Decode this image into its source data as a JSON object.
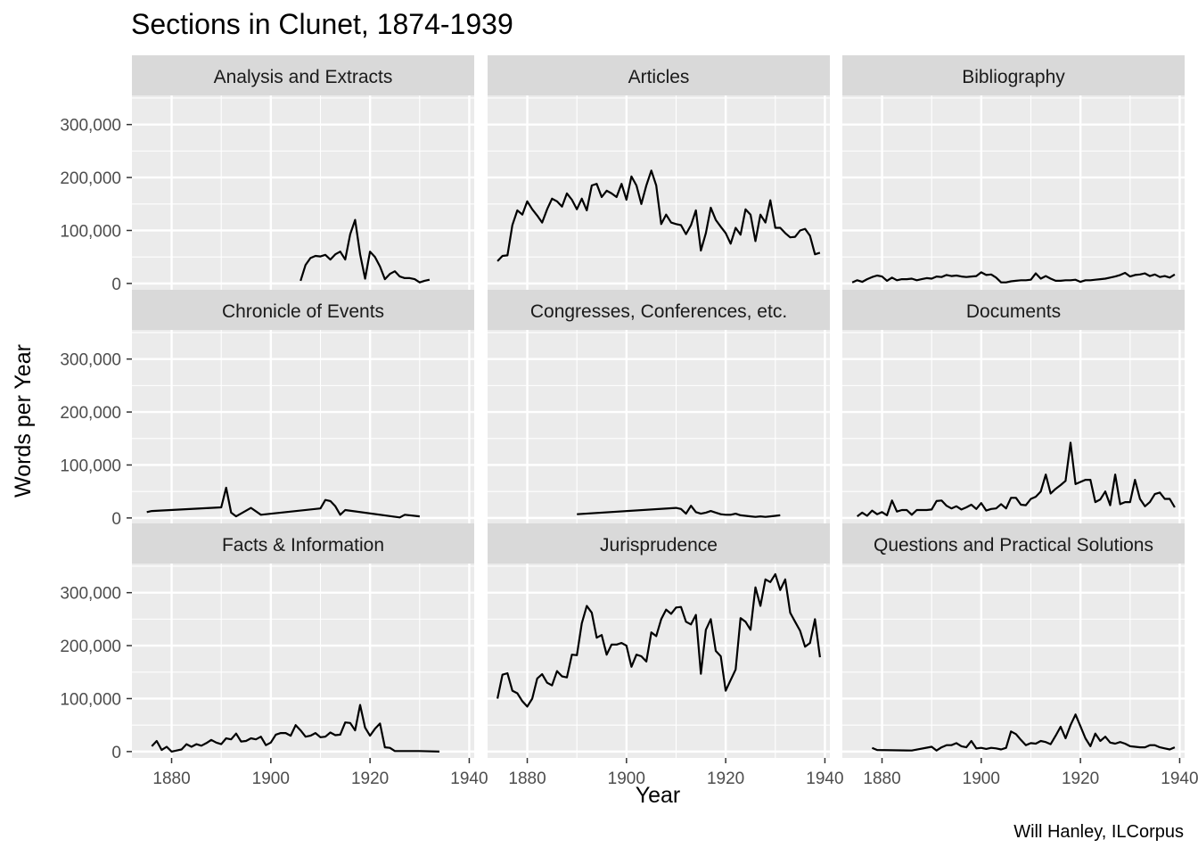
{
  "chart_data": {
    "type": "line",
    "title": "Sections in Clunet, 1874-1939",
    "xlabel": "Year",
    "ylabel": "Words per Year",
    "caption": "Will Hanley, ILCorpus",
    "xlim": [
      1872,
      1941
    ],
    "ylim": [
      -12000,
      355000
    ],
    "x_ticks": [
      1880,
      1900,
      1920,
      1940
    ],
    "y_ticks": [
      0,
      100000,
      200000,
      300000
    ],
    "y_tick_labels": [
      "0",
      "100,000",
      "200,000",
      "300,000"
    ],
    "legend": "none",
    "grid": true,
    "line_color": "#000000",
    "panel_background": "#ebebeb",
    "strip_background": "#d9d9d9",
    "panels": [
      {
        "name": "Analysis and Extracts",
        "x": [
          1906,
          1907,
          1908,
          1909,
          1910,
          1911,
          1912,
          1913,
          1914,
          1915,
          1916,
          1917,
          1918,
          1919,
          1920,
          1921,
          1922,
          1923,
          1924,
          1925,
          1926,
          1927,
          1928,
          1929,
          1930,
          1931,
          1932
        ],
        "y": [
          5000,
          35000,
          48000,
          52000,
          51000,
          54000,
          45000,
          55000,
          60000,
          45000,
          93000,
          120000,
          55000,
          9000,
          60000,
          50000,
          32000,
          8000,
          18000,
          23000,
          13000,
          10000,
          10000,
          8000,
          2000,
          5000,
          7000
        ]
      },
      {
        "name": "Articles",
        "x": [
          1874,
          1875,
          1876,
          1877,
          1878,
          1879,
          1880,
          1881,
          1882,
          1883,
          1884,
          1885,
          1886,
          1887,
          1888,
          1889,
          1890,
          1891,
          1892,
          1893,
          1894,
          1895,
          1896,
          1897,
          1898,
          1899,
          1900,
          1901,
          1902,
          1903,
          1904,
          1905,
          1906,
          1907,
          1908,
          1909,
          1910,
          1911,
          1912,
          1913,
          1914,
          1915,
          1916,
          1917,
          1918,
          1919,
          1920,
          1921,
          1922,
          1923,
          1924,
          1925,
          1926,
          1927,
          1928,
          1929,
          1930,
          1931,
          1932,
          1933,
          1934,
          1935,
          1936,
          1937,
          1938,
          1939
        ],
        "y": [
          42000,
          52000,
          53000,
          110000,
          138000,
          130000,
          155000,
          140000,
          128000,
          115000,
          140000,
          160000,
          155000,
          145000,
          170000,
          158000,
          140000,
          160000,
          138000,
          185000,
          188000,
          163000,
          175000,
          170000,
          163000,
          188000,
          158000,
          202000,
          185000,
          150000,
          185000,
          213000,
          185000,
          112000,
          130000,
          115000,
          112000,
          110000,
          93000,
          110000,
          138000,
          62000,
          95000,
          143000,
          120000,
          107000,
          95000,
          75000,
          105000,
          92000,
          140000,
          130000,
          80000,
          130000,
          115000,
          157000,
          105000,
          105000,
          95000,
          87000,
          88000,
          100000,
          103000,
          90000,
          55000,
          58000
        ]
      },
      {
        "name": "Bibliography",
        "x": [
          1874,
          1875,
          1876,
          1877,
          1878,
          1879,
          1880,
          1881,
          1882,
          1883,
          1884,
          1885,
          1886,
          1887,
          1888,
          1889,
          1890,
          1891,
          1892,
          1893,
          1894,
          1895,
          1896,
          1897,
          1898,
          1899,
          1900,
          1901,
          1902,
          1903,
          1904,
          1905,
          1906,
          1907,
          1908,
          1909,
          1910,
          1911,
          1912,
          1913,
          1914,
          1915,
          1916,
          1917,
          1918,
          1919,
          1920,
          1921,
          1922,
          1923,
          1924,
          1925,
          1926,
          1927,
          1928,
          1929,
          1930,
          1931,
          1932,
          1933,
          1934,
          1935,
          1936,
          1937,
          1938,
          1939
        ],
        "y": [
          2000,
          6000,
          3000,
          8000,
          12000,
          15000,
          13000,
          5000,
          11000,
          6000,
          8000,
          8000,
          9000,
          6000,
          8000,
          10000,
          9000,
          13000,
          12000,
          16000,
          14000,
          15000,
          13000,
          12000,
          13000,
          14000,
          21000,
          16000,
          17000,
          11000,
          2000,
          2000,
          4000,
          5000,
          6000,
          6000,
          7000,
          19000,
          9000,
          14000,
          9000,
          5000,
          5000,
          6000,
          6000,
          7000,
          3000,
          6000,
          6000,
          7000,
          8000,
          9000,
          11000,
          13000,
          16000,
          20000,
          13000,
          16000,
          17000,
          19000,
          14000,
          17000,
          12000,
          14000,
          11000,
          17000
        ]
      },
      {
        "name": "Chronicle of Events",
        "x": [
          1875,
          1876,
          1890,
          1891,
          1892,
          1893,
          1896,
          1898,
          1910,
          1911,
          1912,
          1913,
          1914,
          1915,
          1926,
          1927,
          1930
        ],
        "y": [
          11000,
          13000,
          20000,
          57000,
          10000,
          3000,
          19000,
          6000,
          18000,
          34000,
          32000,
          22000,
          6000,
          15000,
          1000,
          6000,
          3000
        ]
      },
      {
        "name": "Congresses, Conferences, etc.",
        "x": [
          1890,
          1910,
          1911,
          1912,
          1913,
          1914,
          1915,
          1916,
          1917,
          1918,
          1919,
          1920,
          1921,
          1922,
          1923,
          1924,
          1925,
          1926,
          1927,
          1928,
          1929,
          1930,
          1931
        ],
        "y": [
          7000,
          19000,
          17000,
          8000,
          23000,
          11000,
          8000,
          10000,
          13000,
          10000,
          7000,
          6000,
          6000,
          8000,
          5000,
          4000,
          3000,
          2000,
          3000,
          2000,
          3000,
          4000,
          5000
        ]
      },
      {
        "name": "Documents",
        "x": [
          1875,
          1876,
          1877,
          1878,
          1879,
          1880,
          1881,
          1882,
          1883,
          1884,
          1885,
          1886,
          1887,
          1888,
          1889,
          1890,
          1891,
          1892,
          1893,
          1894,
          1895,
          1896,
          1897,
          1898,
          1899,
          1900,
          1901,
          1902,
          1903,
          1904,
          1905,
          1906,
          1907,
          1908,
          1909,
          1910,
          1911,
          1912,
          1913,
          1914,
          1915,
          1916,
          1917,
          1918,
          1919,
          1920,
          1921,
          1922,
          1923,
          1924,
          1925,
          1926,
          1927,
          1928,
          1929,
          1930,
          1931,
          1932,
          1933,
          1934,
          1935,
          1936,
          1937,
          1938,
          1939
        ],
        "y": [
          3000,
          10000,
          4000,
          14000,
          7000,
          11000,
          5000,
          33000,
          12000,
          15000,
          15000,
          6000,
          15000,
          15000,
          15000,
          16000,
          32000,
          33000,
          23000,
          18000,
          22000,
          16000,
          20000,
          25000,
          17000,
          28000,
          14000,
          17000,
          18000,
          26000,
          18000,
          38000,
          38000,
          25000,
          24000,
          36000,
          40000,
          50000,
          82000,
          46000,
          55000,
          62000,
          70000,
          142000,
          64000,
          68000,
          72000,
          72000,
          30000,
          35000,
          50000,
          24000,
          82000,
          26000,
          30000,
          30000,
          72000,
          36000,
          22000,
          30000,
          45000,
          48000,
          36000,
          36000,
          20000
        ]
      },
      {
        "name": "Facts & Information",
        "x": [
          1876,
          1877,
          1878,
          1879,
          1880,
          1881,
          1882,
          1883,
          1884,
          1885,
          1886,
          1887,
          1888,
          1889,
          1890,
          1891,
          1892,
          1893,
          1894,
          1895,
          1896,
          1897,
          1898,
          1899,
          1900,
          1901,
          1902,
          1903,
          1904,
          1905,
          1906,
          1907,
          1908,
          1909,
          1910,
          1911,
          1912,
          1913,
          1914,
          1915,
          1916,
          1917,
          1918,
          1919,
          1920,
          1921,
          1922,
          1923,
          1924,
          1925,
          1930,
          1934
        ],
        "y": [
          10000,
          20000,
          3000,
          9000,
          0,
          2000,
          4000,
          14000,
          9000,
          14000,
          11000,
          16000,
          22000,
          17000,
          14000,
          25000,
          23000,
          34000,
          19000,
          20000,
          25000,
          23000,
          28000,
          12000,
          17000,
          32000,
          35000,
          35000,
          30000,
          50000,
          40000,
          28000,
          30000,
          35000,
          27000,
          28000,
          36000,
          31000,
          32000,
          55000,
          54000,
          40000,
          88000,
          45000,
          30000,
          43000,
          53000,
          8000,
          7000,
          1000,
          1000,
          0
        ]
      },
      {
        "name": "Jurisprudence",
        "x": [
          1874,
          1875,
          1876,
          1877,
          1878,
          1879,
          1880,
          1881,
          1882,
          1883,
          1884,
          1885,
          1886,
          1887,
          1888,
          1889,
          1890,
          1891,
          1892,
          1893,
          1894,
          1895,
          1896,
          1897,
          1898,
          1899,
          1900,
          1901,
          1902,
          1903,
          1904,
          1905,
          1906,
          1907,
          1908,
          1909,
          1910,
          1911,
          1912,
          1913,
          1914,
          1915,
          1916,
          1917,
          1918,
          1919,
          1920,
          1921,
          1922,
          1923,
          1924,
          1925,
          1926,
          1927,
          1928,
          1929,
          1930,
          1931,
          1932,
          1933,
          1934,
          1935,
          1936,
          1937,
          1938,
          1939
        ],
        "y": [
          100000,
          145000,
          148000,
          115000,
          110000,
          95000,
          85000,
          100000,
          138000,
          146000,
          130000,
          125000,
          152000,
          142000,
          140000,
          183000,
          182000,
          242000,
          275000,
          262000,
          215000,
          220000,
          183000,
          202000,
          202000,
          205000,
          200000,
          160000,
          183000,
          180000,
          170000,
          225000,
          218000,
          250000,
          268000,
          260000,
          272000,
          273000,
          245000,
          240000,
          258000,
          147000,
          230000,
          250000,
          190000,
          180000,
          115000,
          135000,
          155000,
          252000,
          245000,
          230000,
          310000,
          275000,
          325000,
          320000,
          335000,
          305000,
          325000,
          262000,
          245000,
          228000,
          198000,
          205000,
          250000,
          178000
        ]
      },
      {
        "name": "Questions and Practical Solutions",
        "x": [
          1878,
          1879,
          1886,
          1890,
          1891,
          1892,
          1893,
          1894,
          1895,
          1896,
          1897,
          1898,
          1899,
          1900,
          1901,
          1902,
          1903,
          1904,
          1905,
          1906,
          1907,
          1908,
          1909,
          1910,
          1911,
          1912,
          1913,
          1914,
          1915,
          1916,
          1917,
          1918,
          1919,
          1920,
          1921,
          1922,
          1923,
          1924,
          1925,
          1926,
          1927,
          1928,
          1929,
          1930,
          1931,
          1932,
          1933,
          1934,
          1935,
          1936,
          1937,
          1938,
          1939
        ],
        "y": [
          7000,
          3000,
          2000,
          9000,
          2000,
          8000,
          12000,
          12000,
          16000,
          10000,
          8000,
          20000,
          6000,
          7000,
          5000,
          7000,
          6000,
          4000,
          7000,
          38000,
          33000,
          22000,
          12000,
          16000,
          15000,
          20000,
          18000,
          14000,
          30000,
          47000,
          25000,
          50000,
          70000,
          48000,
          25000,
          10000,
          34000,
          20000,
          28000,
          17000,
          15000,
          18000,
          15000,
          10000,
          9000,
          8000,
          8000,
          12000,
          12000,
          8000,
          6000,
          4000,
          8000
        ]
      }
    ]
  }
}
